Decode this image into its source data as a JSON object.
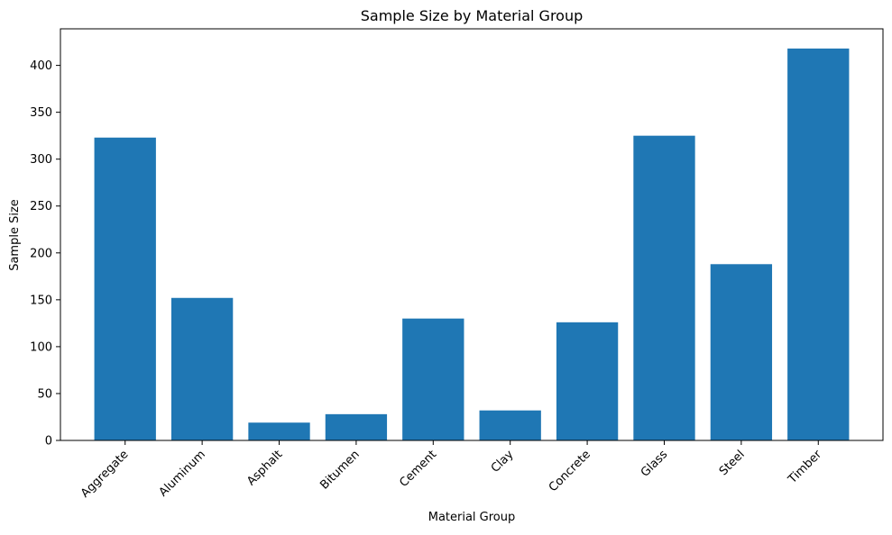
{
  "chart_data": {
    "type": "bar",
    "title": "Sample Size by Material Group",
    "xlabel": "Material Group",
    "ylabel": "Sample Size",
    "categories": [
      "Aggregate",
      "Aluminum",
      "Asphalt",
      "Bitumen",
      "Cement",
      "Clay",
      "Concrete",
      "Glass",
      "Steel",
      "Timber"
    ],
    "values": [
      323,
      152,
      19,
      28,
      130,
      32,
      126,
      325,
      188,
      418
    ],
    "ylim": [
      0,
      439
    ],
    "yticks": [
      0,
      50,
      100,
      150,
      200,
      250,
      300,
      350,
      400
    ],
    "grid": false,
    "legend": "none",
    "bar_color": "#1f77b4"
  }
}
